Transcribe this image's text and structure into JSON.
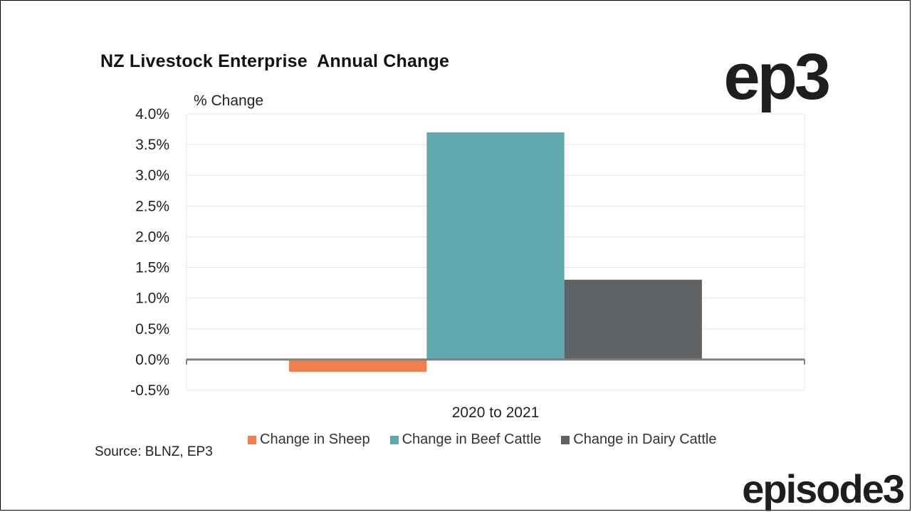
{
  "title": "NZ Livestock Enterprise  Annual Change",
  "logo_top": "ep3",
  "logo_bottom": "episode3",
  "source": "Source: BLNZ, EP3",
  "colors": {
    "sheep": "#F07F4E",
    "beef": "#62A8B0",
    "dairy": "#5E6264",
    "axis": "#808080",
    "grid": "#E6E6E6"
  },
  "chart_data": {
    "type": "bar",
    "title": "NZ Livestock Enterprise  Annual Change",
    "ylabel": "% Change",
    "xlabel": "",
    "categories": [
      "2020 to 2021"
    ],
    "ylim": [
      -0.5,
      4.0
    ],
    "yticks": [
      "4.0%",
      "3.5%",
      "3.0%",
      "2.5%",
      "2.0%",
      "1.5%",
      "1.0%",
      "0.5%",
      "0.0%",
      "-0.5%"
    ],
    "grid": true,
    "legend_position": "bottom",
    "series": [
      {
        "name": "Change in Sheep",
        "values": [
          -0.2
        ],
        "color": "#F07F4E"
      },
      {
        "name": "Change in Beef Cattle",
        "values": [
          3.7
        ],
        "color": "#62A8B0"
      },
      {
        "name": "Change in Dairy Cattle",
        "values": [
          1.3
        ],
        "color": "#5E6264"
      }
    ]
  }
}
